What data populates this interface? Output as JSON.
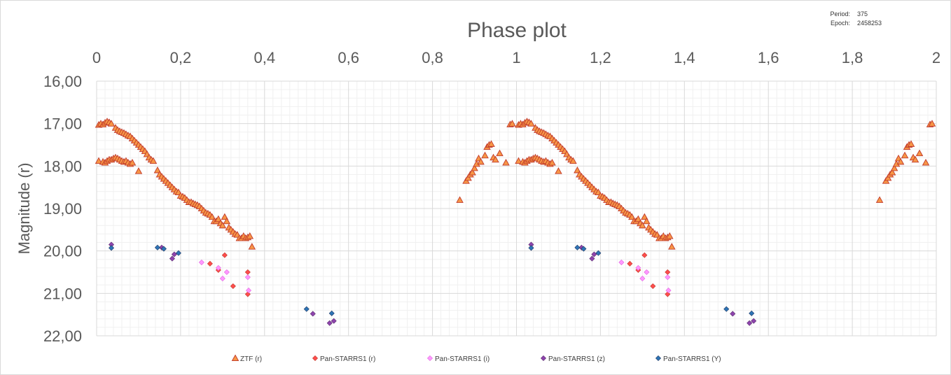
{
  "info": {
    "period_label": "Period:",
    "period_value": "375",
    "epoch_label": "Epoch:",
    "epoch_value": "2458253"
  },
  "chart_data": {
    "type": "scatter",
    "title": "Phase plot",
    "xlabel": "",
    "ylabel": "Magnitude (r)",
    "xlim": [
      0,
      2
    ],
    "ylim": [
      16,
      22
    ],
    "y_inverted": true,
    "x_axis_position": "top",
    "x_ticks": [
      0,
      0.2,
      0.4,
      0.6,
      0.8,
      1,
      1.2,
      1.4,
      1.6,
      1.8,
      2
    ],
    "x_tick_labels": [
      "0",
      "0,2",
      "0,4",
      "0,6",
      "0,8",
      "1",
      "1,2",
      "1,4",
      "1,6",
      "1,8",
      "2"
    ],
    "y_ticks": [
      16,
      17,
      18,
      19,
      20,
      21,
      22
    ],
    "y_tick_labels": [
      "16,00",
      "17,00",
      "18,00",
      "19,00",
      "20,00",
      "21,00",
      "22,00"
    ],
    "grid": true,
    "legend_position": "bottom",
    "series": [
      {
        "name": "ZTF (r)",
        "marker": "triangle",
        "color": "#f79646",
        "edge": "#c0392b",
        "points": [
          [
            0.005,
            17.03
          ],
          [
            0.01,
            17.0
          ],
          [
            0.015,
            17.02
          ],
          [
            0.02,
            16.98
          ],
          [
            0.025,
            16.95
          ],
          [
            0.03,
            16.97
          ],
          [
            0.035,
            17.0
          ],
          [
            0.045,
            17.1
          ],
          [
            0.05,
            17.15
          ],
          [
            0.055,
            17.18
          ],
          [
            0.06,
            17.2
          ],
          [
            0.065,
            17.22
          ],
          [
            0.07,
            17.25
          ],
          [
            0.075,
            17.28
          ],
          [
            0.08,
            17.3
          ],
          [
            0.085,
            17.35
          ],
          [
            0.09,
            17.4
          ],
          [
            0.095,
            17.45
          ],
          [
            0.1,
            17.5
          ],
          [
            0.105,
            17.55
          ],
          [
            0.11,
            17.6
          ],
          [
            0.115,
            17.65
          ],
          [
            0.12,
            17.72
          ],
          [
            0.125,
            17.8
          ],
          [
            0.13,
            17.85
          ],
          [
            0.135,
            17.88
          ],
          [
            0.145,
            18.1
          ],
          [
            0.15,
            18.2
          ],
          [
            0.155,
            18.25
          ],
          [
            0.16,
            18.3
          ],
          [
            0.165,
            18.35
          ],
          [
            0.17,
            18.4
          ],
          [
            0.175,
            18.45
          ],
          [
            0.18,
            18.5
          ],
          [
            0.185,
            18.55
          ],
          [
            0.19,
            18.6
          ],
          [
            0.195,
            18.62
          ],
          [
            0.2,
            18.7
          ],
          [
            0.205,
            18.72
          ],
          [
            0.21,
            18.75
          ],
          [
            0.215,
            18.8
          ],
          [
            0.22,
            18.85
          ],
          [
            0.225,
            18.85
          ],
          [
            0.23,
            18.88
          ],
          [
            0.235,
            18.9
          ],
          [
            0.24,
            18.92
          ],
          [
            0.245,
            18.95
          ],
          [
            0.25,
            19.0
          ],
          [
            0.255,
            19.05
          ],
          [
            0.26,
            19.1
          ],
          [
            0.265,
            19.12
          ],
          [
            0.27,
            19.15
          ],
          [
            0.275,
            19.2
          ],
          [
            0.28,
            19.3
          ],
          [
            0.285,
            19.3
          ],
          [
            0.29,
            19.25
          ],
          [
            0.295,
            19.35
          ],
          [
            0.3,
            19.4
          ],
          [
            0.305,
            19.2
          ],
          [
            0.31,
            19.3
          ],
          [
            0.315,
            19.45
          ],
          [
            0.32,
            19.5
          ],
          [
            0.325,
            19.55
          ],
          [
            0.33,
            19.6
          ],
          [
            0.335,
            19.62
          ],
          [
            0.34,
            19.7
          ],
          [
            0.345,
            19.7
          ],
          [
            0.35,
            19.65
          ],
          [
            0.355,
            19.7
          ],
          [
            0.36,
            19.68
          ],
          [
            0.365,
            19.65
          ],
          [
            0.37,
            19.9
          ],
          [
            0.005,
            17.88
          ],
          [
            0.015,
            17.9
          ],
          [
            0.02,
            17.92
          ],
          [
            0.025,
            17.88
          ],
          [
            0.03,
            17.85
          ],
          [
            0.035,
            17.85
          ],
          [
            0.04,
            17.82
          ],
          [
            0.045,
            17.8
          ],
          [
            0.05,
            17.82
          ],
          [
            0.055,
            17.85
          ],
          [
            0.06,
            17.88
          ],
          [
            0.065,
            17.9
          ],
          [
            0.07,
            17.88
          ],
          [
            0.075,
            17.92
          ],
          [
            0.08,
            17.95
          ],
          [
            0.085,
            17.92
          ],
          [
            0.1,
            18.12
          ],
          [
            0.865,
            18.8
          ],
          [
            0.88,
            18.35
          ],
          [
            0.885,
            18.28
          ],
          [
            0.89,
            18.2
          ],
          [
            0.895,
            18.15
          ],
          [
            0.9,
            18.05
          ],
          [
            0.905,
            17.95
          ],
          [
            0.91,
            17.82
          ],
          [
            0.915,
            17.9
          ],
          [
            0.925,
            17.75
          ],
          [
            0.93,
            17.55
          ],
          [
            0.935,
            17.5
          ],
          [
            0.94,
            17.48
          ],
          [
            0.945,
            17.8
          ],
          [
            0.95,
            17.85
          ],
          [
            0.96,
            17.7
          ],
          [
            0.975,
            17.92
          ],
          [
            0.985,
            17.02
          ],
          [
            0.99,
            17.0
          ],
          [
            1.005,
            17.03
          ],
          [
            1.01,
            17.0
          ],
          [
            1.015,
            17.02
          ],
          [
            1.02,
            16.98
          ],
          [
            1.025,
            16.95
          ],
          [
            1.03,
            16.97
          ],
          [
            1.035,
            17.0
          ],
          [
            1.045,
            17.1
          ],
          [
            1.05,
            17.15
          ],
          [
            1.055,
            17.18
          ],
          [
            1.06,
            17.2
          ],
          [
            1.065,
            17.22
          ],
          [
            1.07,
            17.25
          ],
          [
            1.075,
            17.28
          ],
          [
            1.08,
            17.3
          ],
          [
            1.085,
            17.35
          ],
          [
            1.09,
            17.4
          ],
          [
            1.095,
            17.45
          ],
          [
            1.1,
            17.5
          ],
          [
            1.105,
            17.55
          ],
          [
            1.11,
            17.6
          ],
          [
            1.115,
            17.65
          ],
          [
            1.12,
            17.72
          ],
          [
            1.125,
            17.8
          ],
          [
            1.13,
            17.85
          ],
          [
            1.135,
            17.88
          ],
          [
            1.145,
            18.1
          ],
          [
            1.15,
            18.2
          ],
          [
            1.155,
            18.25
          ],
          [
            1.16,
            18.3
          ],
          [
            1.165,
            18.35
          ],
          [
            1.17,
            18.4
          ],
          [
            1.175,
            18.45
          ],
          [
            1.18,
            18.5
          ],
          [
            1.185,
            18.55
          ],
          [
            1.19,
            18.6
          ],
          [
            1.195,
            18.62
          ],
          [
            1.2,
            18.7
          ],
          [
            1.205,
            18.72
          ],
          [
            1.21,
            18.75
          ],
          [
            1.215,
            18.8
          ],
          [
            1.22,
            18.85
          ],
          [
            1.225,
            18.85
          ],
          [
            1.23,
            18.88
          ],
          [
            1.235,
            18.9
          ],
          [
            1.24,
            18.92
          ],
          [
            1.245,
            18.95
          ],
          [
            1.25,
            19.0
          ],
          [
            1.255,
            19.05
          ],
          [
            1.26,
            19.1
          ],
          [
            1.265,
            19.12
          ],
          [
            1.27,
            19.15
          ],
          [
            1.275,
            19.2
          ],
          [
            1.28,
            19.3
          ],
          [
            1.285,
            19.3
          ],
          [
            1.29,
            19.25
          ],
          [
            1.295,
            19.35
          ],
          [
            1.3,
            19.4
          ],
          [
            1.305,
            19.2
          ],
          [
            1.31,
            19.3
          ],
          [
            1.315,
            19.45
          ],
          [
            1.32,
            19.5
          ],
          [
            1.325,
            19.55
          ],
          [
            1.33,
            19.6
          ],
          [
            1.335,
            19.62
          ],
          [
            1.34,
            19.7
          ],
          [
            1.345,
            19.7
          ],
          [
            1.35,
            19.65
          ],
          [
            1.355,
            19.7
          ],
          [
            1.36,
            19.68
          ],
          [
            1.365,
            19.65
          ],
          [
            1.37,
            19.9
          ],
          [
            1.005,
            17.88
          ],
          [
            1.015,
            17.9
          ],
          [
            1.02,
            17.92
          ],
          [
            1.025,
            17.88
          ],
          [
            1.03,
            17.85
          ],
          [
            1.035,
            17.85
          ],
          [
            1.04,
            17.82
          ],
          [
            1.045,
            17.8
          ],
          [
            1.05,
            17.82
          ],
          [
            1.055,
            17.85
          ],
          [
            1.06,
            17.88
          ],
          [
            1.065,
            17.9
          ],
          [
            1.07,
            17.88
          ],
          [
            1.075,
            17.92
          ],
          [
            1.08,
            17.95
          ],
          [
            1.085,
            17.92
          ],
          [
            1.1,
            18.12
          ],
          [
            1.865,
            18.8
          ],
          [
            1.88,
            18.35
          ],
          [
            1.885,
            18.28
          ],
          [
            1.89,
            18.2
          ],
          [
            1.895,
            18.15
          ],
          [
            1.9,
            18.05
          ],
          [
            1.905,
            17.95
          ],
          [
            1.91,
            17.82
          ],
          [
            1.915,
            17.9
          ],
          [
            1.925,
            17.75
          ],
          [
            1.93,
            17.55
          ],
          [
            1.935,
            17.5
          ],
          [
            1.94,
            17.48
          ],
          [
            1.945,
            17.8
          ],
          [
            1.95,
            17.85
          ],
          [
            1.96,
            17.7
          ],
          [
            1.975,
            17.92
          ],
          [
            1.985,
            17.02
          ],
          [
            1.99,
            17.0
          ]
        ]
      },
      {
        "name": "Pan-STARRS1 (r)",
        "marker": "diamond",
        "color": "#ff4d4d",
        "edge": "#c0392b",
        "points": [
          [
            0.27,
            20.3
          ],
          [
            0.29,
            20.45
          ],
          [
            0.305,
            20.1
          ],
          [
            0.325,
            20.83
          ],
          [
            0.36,
            20.5
          ],
          [
            0.36,
            21.02
          ],
          [
            1.27,
            20.3
          ],
          [
            1.29,
            20.45
          ],
          [
            1.305,
            20.1
          ],
          [
            1.325,
            20.83
          ],
          [
            1.36,
            20.5
          ],
          [
            1.36,
            21.02
          ]
        ]
      },
      {
        "name": "Pan-STARRS1 (i)",
        "marker": "diamond",
        "color": "#ff99ff",
        "edge": "#e066e0",
        "points": [
          [
            0.25,
            20.27
          ],
          [
            0.29,
            20.4
          ],
          [
            0.3,
            20.65
          ],
          [
            0.31,
            20.5
          ],
          [
            0.36,
            20.62
          ],
          [
            0.362,
            20.93
          ],
          [
            1.25,
            20.27
          ],
          [
            1.29,
            20.4
          ],
          [
            1.3,
            20.65
          ],
          [
            1.31,
            20.5
          ],
          [
            1.36,
            20.62
          ],
          [
            1.362,
            20.93
          ]
        ]
      },
      {
        "name": "Pan-STARRS1 (z)",
        "marker": "diamond",
        "color": "#8e44ad",
        "edge": "#5b2c6f",
        "points": [
          [
            0.035,
            19.85
          ],
          [
            0.155,
            19.92
          ],
          [
            0.18,
            20.18
          ],
          [
            0.185,
            20.08
          ],
          [
            0.515,
            21.48
          ],
          [
            0.555,
            21.7
          ],
          [
            0.565,
            21.65
          ],
          [
            1.035,
            19.85
          ],
          [
            1.155,
            19.92
          ],
          [
            1.18,
            20.18
          ],
          [
            1.185,
            20.08
          ],
          [
            1.515,
            21.48
          ],
          [
            1.555,
            21.7
          ],
          [
            1.565,
            21.65
          ]
        ]
      },
      {
        "name": "Pan-STARRS1 (Y)",
        "marker": "diamond",
        "color": "#2e75b6",
        "edge": "#1f3864",
        "points": [
          [
            0.035,
            19.93
          ],
          [
            0.145,
            19.92
          ],
          [
            0.16,
            19.95
          ],
          [
            0.195,
            20.05
          ],
          [
            0.5,
            21.37
          ],
          [
            0.56,
            21.47
          ],
          [
            1.035,
            19.93
          ],
          [
            1.145,
            19.92
          ],
          [
            1.16,
            19.95
          ],
          [
            1.195,
            20.05
          ],
          [
            1.5,
            21.37
          ],
          [
            1.56,
            21.47
          ]
        ]
      }
    ]
  }
}
